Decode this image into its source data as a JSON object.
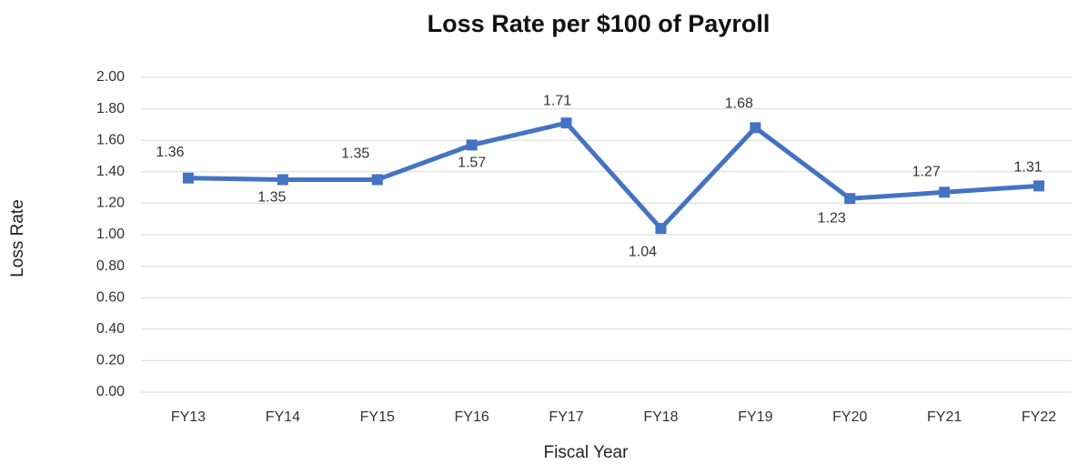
{
  "chart_data": {
    "type": "line",
    "title": "Loss Rate per $100 of Payroll",
    "x_label": "Fiscal Year",
    "y_label": "Loss Rate",
    "categories": [
      "FY13",
      "FY14",
      "FY15",
      "FY16",
      "FY17",
      "FY18",
      "FY19",
      "FY20",
      "FY21",
      "FY22"
    ],
    "series": [
      {
        "name": "Loss Rate",
        "color": "#4472c4",
        "values": [
          1.36,
          1.35,
          1.35,
          1.57,
          1.71,
          1.04,
          1.68,
          1.23,
          1.27,
          1.31
        ]
      }
    ],
    "ylim": [
      0,
      2
    ],
    "yticks": [
      {
        "value": 0,
        "label": "0.00"
      },
      {
        "value": 0.2,
        "label": "0.20"
      },
      {
        "value": 0.4,
        "label": "0.40"
      },
      {
        "value": 0.6,
        "label": "0.60"
      },
      {
        "value": 0.8,
        "label": "0.80"
      },
      {
        "value": 1,
        "label": "1.00"
      },
      {
        "value": 1.2,
        "label": "1.20"
      },
      {
        "value": 1.4,
        "label": "1.40"
      },
      {
        "value": 1.6,
        "label": "1.60"
      },
      {
        "value": 1.8,
        "label": "1.80"
      },
      {
        "value": 2,
        "label": "2.00"
      }
    ],
    "grid": true
  }
}
